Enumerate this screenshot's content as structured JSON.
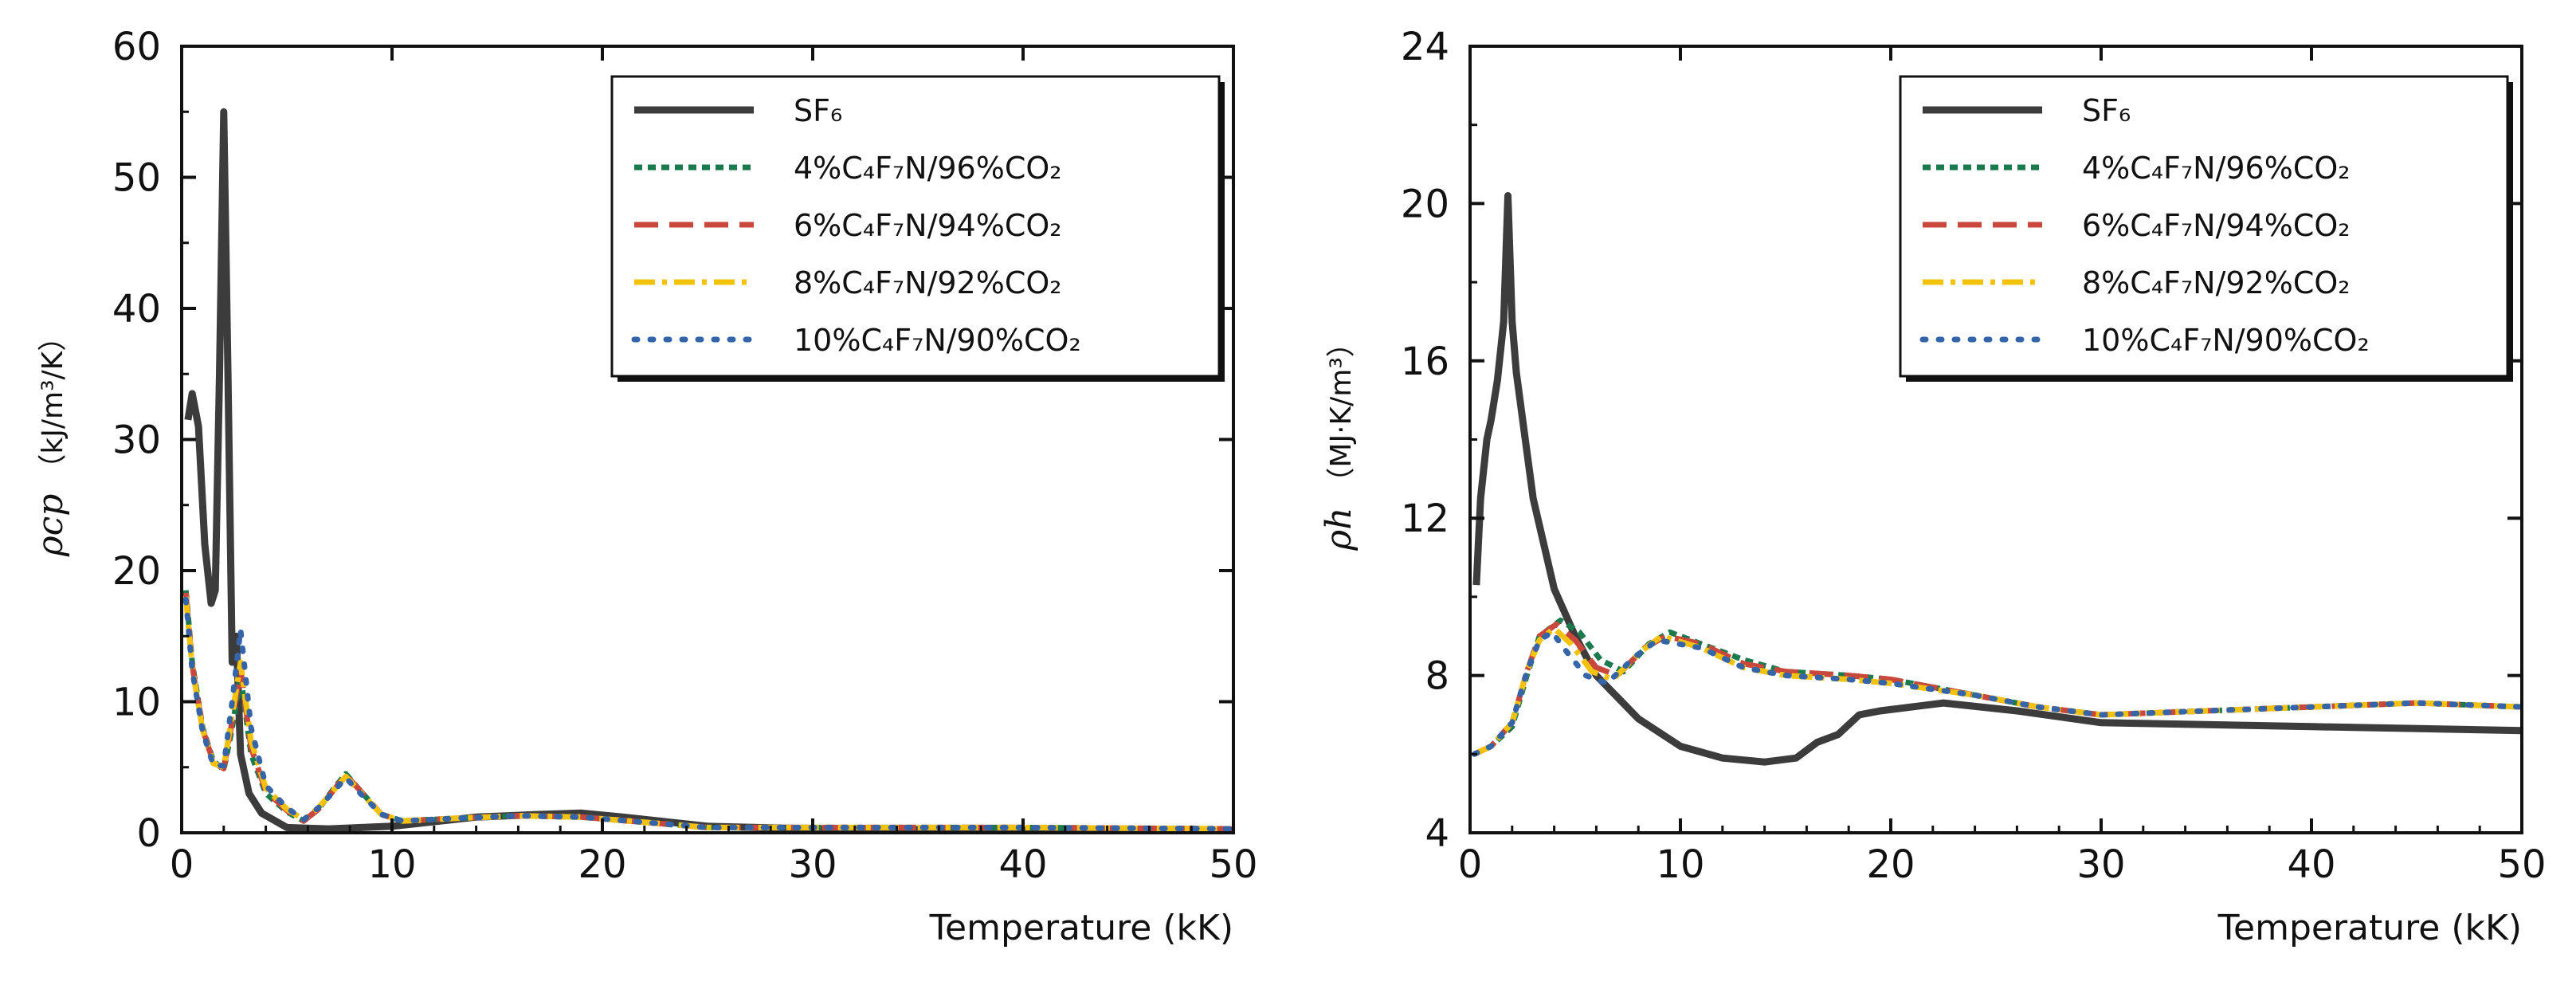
{
  "chart_data": [
    {
      "type": "line",
      "xlabel": "Temperature (kK)",
      "ylabel": {
        "symbol": "ρcp",
        "unit": "（kJ/m³/K）"
      },
      "xlim": [
        0,
        50
      ],
      "ylim": [
        0,
        60
      ],
      "xticks": [
        0,
        10,
        20,
        30,
        40,
        50
      ],
      "yticks": [
        0,
        10,
        20,
        30,
        40,
        50,
        60
      ],
      "legend_position": "top-right",
      "series": [
        {
          "name": "SF₆",
          "color": "#3c3c3c",
          "dash": "solid",
          "x": [
            0.3,
            0.5,
            0.8,
            1.1,
            1.4,
            1.6,
            1.8,
            2.0,
            2.2,
            2.4,
            2.6,
            2.8,
            3.2,
            3.8,
            5,
            7,
            10,
            14,
            17,
            19,
            21,
            25,
            30,
            40,
            50
          ],
          "y": [
            31.5,
            33.5,
            31,
            22,
            17.5,
            18.5,
            35,
            55,
            35,
            13,
            15,
            6,
            3,
            1.5,
            0.4,
            0.3,
            0.5,
            1.2,
            1.4,
            1.5,
            1.2,
            0.5,
            0.3,
            0.2,
            0.2
          ]
        },
        {
          "name": "4%C₄F₇N/96%CO₂",
          "color": "#1a7a4e",
          "dash": "short",
          "x": [
            0.2,
            0.5,
            1.0,
            1.5,
            2.0,
            2.4,
            2.8,
            3.3,
            4,
            5,
            5.8,
            6.5,
            7.2,
            7.8,
            8.5,
            9.5,
            10.5,
            13,
            16,
            19,
            22,
            25,
            30,
            40,
            50
          ],
          "y": [
            18.5,
            13,
            8,
            5.5,
            4.8,
            8,
            12,
            6,
            3,
            1.6,
            0.9,
            1.8,
            3.3,
            4.5,
            3.2,
            1.4,
            0.9,
            1.1,
            1.3,
            1.2,
            0.8,
            0.4,
            0.4,
            0.4,
            0.3
          ]
        },
        {
          "name": "6%C₄F₇N/94%CO₂",
          "color": "#c9473b",
          "dash": "long",
          "x": [
            0.2,
            0.5,
            1.0,
            1.5,
            2.0,
            2.4,
            2.8,
            3.3,
            4,
            5,
            5.8,
            6.5,
            7.2,
            7.8,
            8.5,
            9.5,
            10.5,
            13,
            16,
            19,
            22,
            25,
            30,
            40,
            50
          ],
          "y": [
            18.3,
            12.8,
            7.9,
            5.4,
            4.9,
            8.5,
            12.5,
            6.5,
            3.2,
            1.7,
            0.9,
            1.8,
            3.2,
            4.4,
            3.2,
            1.4,
            0.9,
            1.1,
            1.3,
            1.2,
            0.8,
            0.4,
            0.4,
            0.4,
            0.3
          ]
        },
        {
          "name": "8%C₄F₇N/92%CO₂",
          "color": "#f4c20d",
          "dash": "dashdot",
          "x": [
            0.2,
            0.5,
            1.0,
            1.5,
            2.0,
            2.4,
            2.8,
            3.3,
            4,
            5,
            5.8,
            6.5,
            7.2,
            7.8,
            8.5,
            9.5,
            10.5,
            13,
            16,
            19,
            22,
            25,
            30,
            40,
            50
          ],
          "y": [
            18.0,
            12.6,
            7.8,
            5.3,
            5.0,
            9,
            13,
            7,
            3.4,
            1.8,
            1.0,
            1.9,
            3.2,
            4.3,
            3.1,
            1.4,
            0.9,
            1.1,
            1.3,
            1.2,
            0.8,
            0.4,
            0.4,
            0.4,
            0.3
          ]
        },
        {
          "name": "10%C₄F₇N/90%CO₂",
          "color": "#3565a8",
          "dash": "dotted",
          "x": [
            0.2,
            0.5,
            1.0,
            1.5,
            2.0,
            2.4,
            2.8,
            3.3,
            4,
            5,
            5.8,
            6.5,
            7.2,
            7.8,
            8.5,
            9.5,
            10.5,
            13,
            16,
            19,
            22,
            25,
            30,
            40,
            50
          ],
          "y": [
            17.8,
            12.4,
            7.7,
            5.2,
            5.1,
            10,
            15.5,
            8,
            3.6,
            1.9,
            1.0,
            1.9,
            3.1,
            4.2,
            3.0,
            1.4,
            0.9,
            1.1,
            1.3,
            1.2,
            0.8,
            0.4,
            0.4,
            0.4,
            0.3
          ]
        }
      ]
    },
    {
      "type": "line",
      "xlabel": "Temperature (kK)",
      "ylabel": {
        "symbol": "ρh",
        "unit": "（MJ·K/m³）"
      },
      "xlim": [
        0,
        50
      ],
      "ylim": [
        4,
        24
      ],
      "xticks": [
        0,
        10,
        20,
        30,
        40,
        50
      ],
      "yticks": [
        4,
        8,
        12,
        16,
        20,
        24
      ],
      "legend_position": "top-right",
      "series": [
        {
          "name": "SF₆",
          "color": "#3c3c3c",
          "dash": "solid",
          "x": [
            0.3,
            0.5,
            0.8,
            1.0,
            1.3,
            1.6,
            1.8,
            2.0,
            2.2,
            2.5,
            3,
            4,
            5,
            6,
            8,
            10,
            12,
            14,
            15.5,
            16.5,
            17.5,
            18.5,
            19.5,
            22.5,
            26,
            30,
            40,
            50
          ],
          "y": [
            10.3,
            12.5,
            14,
            14.5,
            15.5,
            17,
            20.2,
            17,
            15.7,
            14.5,
            12.5,
            10.2,
            9,
            8,
            6.9,
            6.2,
            5.9,
            5.8,
            5.9,
            6.3,
            6.5,
            7,
            7.1,
            7.3,
            7.1,
            6.8,
            6.7,
            6.6
          ]
        },
        {
          "name": "4%C₄F₇N/96%CO₂",
          "color": "#1a7a4e",
          "dash": "short",
          "x": [
            0.2,
            1,
            2,
            2.7,
            3.3,
            4.3,
            5.2,
            6.2,
            7.3,
            8.5,
            9.5,
            11,
            13,
            15,
            18,
            20,
            24,
            27,
            30,
            35,
            40,
            45,
            50
          ],
          "y": [
            6.0,
            6.2,
            6.7,
            8.0,
            9.0,
            9.4,
            9.1,
            8.4,
            8.1,
            8.8,
            9.1,
            8.8,
            8.4,
            8.1,
            8.0,
            7.9,
            7.5,
            7.2,
            7.0,
            7.1,
            7.2,
            7.3,
            7.2
          ]
        },
        {
          "name": "6%C₄F₇N/94%CO₂",
          "color": "#c9473b",
          "dash": "long",
          "x": [
            0.2,
            1,
            2,
            2.7,
            3.3,
            4.1,
            5.0,
            6.0,
            7.0,
            8.3,
            9.3,
            11,
            13,
            15,
            18,
            20,
            24,
            27,
            30,
            35,
            40,
            45,
            50
          ],
          "y": [
            6.0,
            6.2,
            6.8,
            8.1,
            9.0,
            9.3,
            8.9,
            8.2,
            8.0,
            8.7,
            9.0,
            8.8,
            8.3,
            8.1,
            8.0,
            7.9,
            7.5,
            7.2,
            7.0,
            7.1,
            7.2,
            7.3,
            7.2
          ]
        },
        {
          "name": "8%C₄F₇N/92%CO₂",
          "color": "#f4c20d",
          "dash": "dashdot",
          "x": [
            0.2,
            1,
            2,
            2.7,
            3.3,
            4.0,
            4.8,
            5.8,
            6.8,
            8.1,
            9.1,
            11,
            13,
            15,
            18,
            20,
            24,
            27,
            30,
            35,
            40,
            45,
            50
          ],
          "y": [
            6.0,
            6.2,
            6.8,
            8.1,
            8.9,
            9.2,
            8.8,
            8.1,
            7.9,
            8.6,
            9.0,
            8.7,
            8.2,
            8.0,
            7.9,
            7.8,
            7.5,
            7.2,
            7.0,
            7.1,
            7.2,
            7.3,
            7.2
          ]
        },
        {
          "name": "10%C₄F₇N/90%CO₂",
          "color": "#3565a8",
          "dash": "dotted",
          "x": [
            0.2,
            1,
            2,
            2.7,
            3.3,
            3.9,
            4.6,
            5.5,
            6.5,
            7.9,
            8.9,
            11,
            13,
            15,
            18,
            20,
            24,
            27,
            30,
            35,
            40,
            45,
            50
          ],
          "y": [
            6.0,
            6.2,
            6.8,
            8.1,
            8.9,
            9.1,
            8.6,
            8.0,
            7.8,
            8.5,
            8.9,
            8.7,
            8.2,
            8.0,
            7.9,
            7.8,
            7.5,
            7.2,
            7.0,
            7.1,
            7.2,
            7.3,
            7.2
          ]
        }
      ]
    }
  ]
}
